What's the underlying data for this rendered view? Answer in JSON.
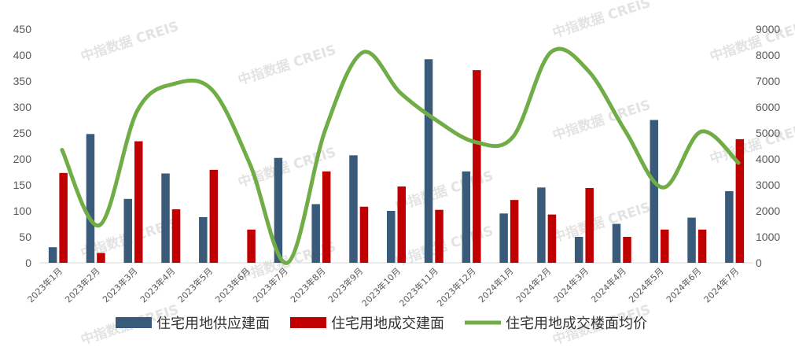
{
  "colors": {
    "supply": "#3a5a7a",
    "deal": "#c00000",
    "price": "#70ad47",
    "axis_text": "#595959"
  },
  "watermark": "中指数据 CREIS",
  "chart_data": {
    "type": "bar+line",
    "categories": [
      "2023年1月",
      "2023年2月",
      "2023年3月",
      "2023年4月",
      "2023年5月",
      "2023年6月",
      "2023年7月",
      "2023年8月",
      "2023年9月",
      "2023年10月",
      "2023年11月",
      "2023年12月",
      "2024年1月",
      "2024年2月",
      "2024年3月",
      "2024年4月",
      "2024年5月",
      "2024年6月",
      "2024年7月"
    ],
    "series": [
      {
        "name": "住宅用地供应建面",
        "type": "bar",
        "axis": "left",
        "color": "#3a5a7a",
        "values": [
          30,
          248,
          123,
          172,
          88,
          0,
          202,
          113,
          207,
          100,
          392,
          176,
          95,
          145,
          50,
          75,
          275,
          87,
          138
        ]
      },
      {
        "name": "住宅用地成交建面",
        "type": "bar",
        "axis": "left",
        "color": "#c00000",
        "values": [
          173,
          19,
          234,
          103,
          179,
          64,
          0,
          176,
          108,
          147,
          102,
          371,
          121,
          93,
          144,
          50,
          64,
          64,
          238
        ]
      },
      {
        "name": "住宅用地成交楼面均价",
        "type": "line",
        "smooth": true,
        "axis": "right",
        "color": "#70ad47",
        "values": [
          4350,
          1450,
          5850,
          6900,
          6650,
          3800,
          0,
          5100,
          8100,
          6550,
          5450,
          4650,
          4850,
          8100,
          7400,
          5050,
          2900,
          5050,
          3850
        ]
      }
    ],
    "y_left": {
      "min": 0,
      "max": 450,
      "ticks": [
        "0",
        "50",
        "100",
        "150",
        "200",
        "250",
        "300",
        "350",
        "400",
        "450"
      ]
    },
    "y_right": {
      "min": 0,
      "max": 9000,
      "ticks": [
        "0",
        "1000",
        "2000",
        "3000",
        "4000",
        "5000",
        "6000",
        "7000",
        "8000",
        "9000"
      ]
    },
    "grid": false,
    "legend_position": "bottom"
  }
}
